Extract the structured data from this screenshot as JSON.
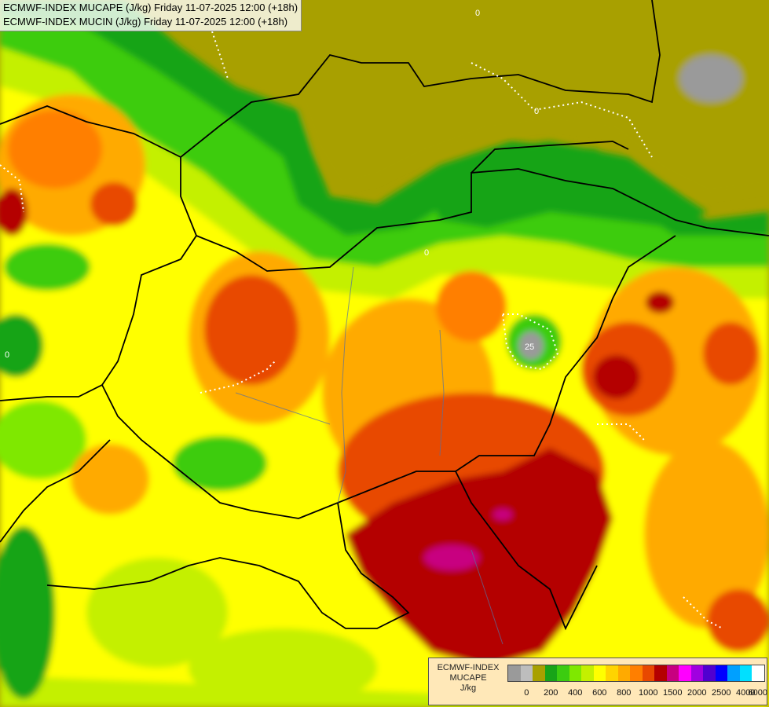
{
  "header": {
    "line1": "ECMWF-INDEX MUCAPE (J/kg) Friday 11-07-2025 12:00 (+18h)",
    "line2": "ECMWF-INDEX MUCIN (J/kg) Friday 11-07-2025 12:00 (+18h)"
  },
  "legend": {
    "title_line1": "ECMWF-INDEX",
    "title_line2": "MUCAPE",
    "title_line3": "J/kg",
    "colors": [
      "#9a9a9a",
      "#bdbdbd",
      "#a8a000",
      "#18a418",
      "#3ccc10",
      "#7fe800",
      "#c4f000",
      "#ffff00",
      "#ffd400",
      "#ffaa00",
      "#ff7f00",
      "#e84800",
      "#b40000",
      "#c80080",
      "#ff00ff",
      "#a000e0",
      "#5000d0",
      "#0000ff",
      "#00a0ff",
      "#00e0ff",
      "#ffffff"
    ],
    "labels": [
      "0",
      "200",
      "400",
      "600",
      "800",
      "1000",
      "1500",
      "2000",
      "2500",
      "4000",
      "6000"
    ]
  },
  "map_labels": {
    "cin_contour_a": "0",
    "cin_contour_b": "25"
  }
}
